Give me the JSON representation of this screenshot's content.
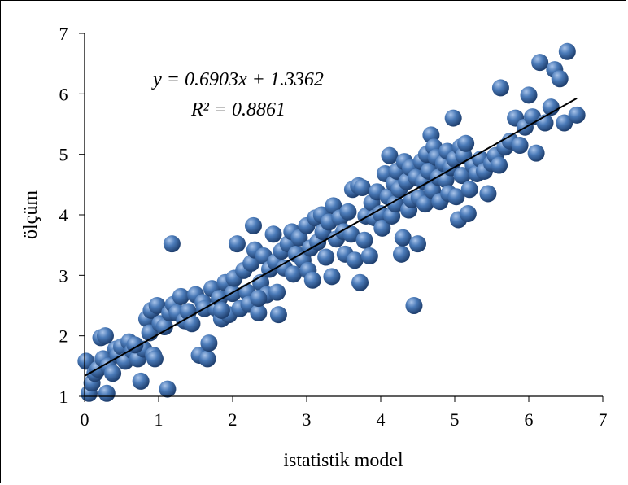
{
  "chart_data": {
    "type": "scatter",
    "xlabel": "istatistik model",
    "ylabel": "ölçüm",
    "xlim": [
      0,
      7
    ],
    "ylim": [
      1,
      7
    ],
    "xticks": [
      "0",
      "1",
      "2",
      "3",
      "4",
      "5",
      "6",
      "7"
    ],
    "yticks": [
      "1",
      "2",
      "3",
      "4",
      "5",
      "6",
      "7"
    ],
    "grid": false,
    "legend": "none",
    "marker_color": "#4a7ab8",
    "trendline": {
      "slope": 0.6903,
      "intercept": 1.3362,
      "x_range": [
        0,
        6.65
      ],
      "color": "#000000"
    },
    "equation": "y = 0.6903x + 1.3362",
    "r_squared": "R² = 0.8861",
    "points": [
      [
        0.02,
        1.58
      ],
      [
        0.06,
        1.05
      ],
      [
        0.1,
        1.22
      ],
      [
        0.14,
        1.38
      ],
      [
        0.18,
        1.45
      ],
      [
        0.22,
        1.97
      ],
      [
        0.25,
        1.62
      ],
      [
        0.28,
        2.0
      ],
      [
        0.3,
        1.05
      ],
      [
        0.32,
        1.5
      ],
      [
        0.38,
        1.38
      ],
      [
        0.42,
        1.78
      ],
      [
        0.45,
        1.68
      ],
      [
        0.5,
        1.82
      ],
      [
        0.55,
        1.58
      ],
      [
        0.6,
        1.9
      ],
      [
        0.65,
        1.75
      ],
      [
        0.72,
        1.62
      ],
      [
        0.76,
        1.25
      ],
      [
        0.8,
        1.78
      ],
      [
        0.84,
        2.28
      ],
      [
        0.88,
        2.05
      ],
      [
        0.9,
        2.42
      ],
      [
        0.93,
        1.68
      ],
      [
        0.95,
        1.62
      ],
      [
        0.98,
        2.5
      ],
      [
        1.02,
        2.2
      ],
      [
        1.08,
        2.15
      ],
      [
        1.12,
        1.12
      ],
      [
        1.15,
        2.38
      ],
      [
        1.18,
        3.52
      ],
      [
        1.2,
        2.52
      ],
      [
        1.25,
        2.38
      ],
      [
        1.3,
        2.65
      ],
      [
        1.35,
        2.25
      ],
      [
        1.4,
        2.4
      ],
      [
        1.45,
        2.2
      ],
      [
        1.5,
        2.68
      ],
      [
        1.55,
        1.68
      ],
      [
        1.6,
        2.55
      ],
      [
        1.62,
        2.45
      ],
      [
        1.66,
        1.62
      ],
      [
        1.68,
        1.88
      ],
      [
        1.72,
        2.78
      ],
      [
        1.78,
        2.45
      ],
      [
        1.82,
        2.62
      ],
      [
        1.85,
        2.28
      ],
      [
        1.9,
        2.88
      ],
      [
        1.95,
        2.35
      ],
      [
        2.0,
        2.7
      ],
      [
        2.02,
        2.95
      ],
      [
        2.06,
        3.52
      ],
      [
        2.1,
        2.45
      ],
      [
        2.15,
        3.08
      ],
      [
        2.2,
        2.72
      ],
      [
        2.22,
        2.52
      ],
      [
        2.25,
        3.2
      ],
      [
        2.28,
        3.82
      ],
      [
        2.3,
        3.42
      ],
      [
        2.35,
        2.38
      ],
      [
        2.38,
        2.88
      ],
      [
        2.42,
        3.32
      ],
      [
        2.46,
        2.68
      ],
      [
        2.5,
        3.1
      ],
      [
        2.55,
        3.68
      ],
      [
        2.58,
        3.22
      ],
      [
        2.6,
        2.72
      ],
      [
        2.62,
        2.35
      ],
      [
        2.66,
        3.4
      ],
      [
        2.7,
        3.12
      ],
      [
        2.75,
        3.52
      ],
      [
        2.8,
        3.72
      ],
      [
        2.82,
        3.02
      ],
      [
        2.86,
        3.35
      ],
      [
        2.9,
        3.62
      ],
      [
        2.95,
        3.25
      ],
      [
        3.0,
        3.82
      ],
      [
        3.02,
        3.08
      ],
      [
        3.05,
        3.45
      ],
      [
        3.08,
        2.92
      ],
      [
        3.12,
        3.95
      ],
      [
        3.15,
        3.55
      ],
      [
        3.2,
        4.0
      ],
      [
        3.22,
        3.72
      ],
      [
        3.26,
        3.3
      ],
      [
        3.3,
        3.88
      ],
      [
        3.34,
        2.98
      ],
      [
        3.36,
        4.15
      ],
      [
        3.4,
        3.6
      ],
      [
        3.45,
        3.95
      ],
      [
        3.5,
        3.72
      ],
      [
        3.52,
        3.35
      ],
      [
        3.56,
        4.05
      ],
      [
        3.6,
        3.68
      ],
      [
        3.62,
        4.42
      ],
      [
        3.65,
        3.25
      ],
      [
        3.7,
        4.48
      ],
      [
        3.72,
        2.88
      ],
      [
        3.75,
        4.45
      ],
      [
        3.78,
        3.58
      ],
      [
        3.8,
        3.98
      ],
      [
        3.85,
        3.32
      ],
      [
        3.88,
        4.2
      ],
      [
        3.92,
        3.95
      ],
      [
        3.95,
        4.38
      ],
      [
        4.0,
        4.02
      ],
      [
        4.02,
        3.78
      ],
      [
        4.06,
        4.68
      ],
      [
        4.1,
        4.3
      ],
      [
        4.12,
        4.98
      ],
      [
        4.15,
        3.98
      ],
      [
        4.18,
        4.52
      ],
      [
        4.2,
        4.18
      ],
      [
        4.22,
        4.72
      ],
      [
        4.25,
        4.42
      ],
      [
        4.28,
        3.35
      ],
      [
        4.3,
        3.62
      ],
      [
        4.32,
        4.88
      ],
      [
        4.35,
        4.55
      ],
      [
        4.38,
        4.08
      ],
      [
        4.4,
        4.78
      ],
      [
        4.42,
        4.25
      ],
      [
        4.45,
        2.5
      ],
      [
        4.48,
        4.62
      ],
      [
        4.5,
        3.52
      ],
      [
        4.52,
        4.28
      ],
      [
        4.55,
        4.88
      ],
      [
        4.58,
        4.55
      ],
      [
        4.6,
        4.18
      ],
      [
        4.62,
        5.0
      ],
      [
        4.65,
        4.72
      ],
      [
        4.68,
        5.32
      ],
      [
        4.7,
        4.4
      ],
      [
        4.72,
        5.12
      ],
      [
        4.75,
        4.95
      ],
      [
        4.78,
        4.62
      ],
      [
        4.8,
        4.22
      ],
      [
        4.85,
        4.85
      ],
      [
        4.88,
        4.58
      ],
      [
        4.9,
        5.05
      ],
      [
        4.92,
        4.35
      ],
      [
        4.95,
        4.78
      ],
      [
        4.98,
        5.6
      ],
      [
        5.0,
        4.92
      ],
      [
        5.02,
        4.3
      ],
      [
        5.05,
        3.92
      ],
      [
        5.08,
        5.12
      ],
      [
        5.1,
        4.65
      ],
      [
        5.12,
        4.98
      ],
      [
        5.15,
        5.18
      ],
      [
        5.18,
        4.02
      ],
      [
        5.2,
        4.42
      ],
      [
        5.25,
        4.82
      ],
      [
        5.3,
        4.68
      ],
      [
        5.35,
        4.92
      ],
      [
        5.4,
        4.72
      ],
      [
        5.45,
        4.35
      ],
      [
        5.5,
        4.85
      ],
      [
        5.55,
        4.98
      ],
      [
        5.6,
        4.82
      ],
      [
        5.62,
        6.1
      ],
      [
        5.68,
        5.12
      ],
      [
        5.75,
        5.22
      ],
      [
        5.82,
        5.6
      ],
      [
        5.88,
        5.15
      ],
      [
        5.95,
        5.45
      ],
      [
        6.0,
        5.98
      ],
      [
        6.05,
        5.62
      ],
      [
        6.1,
        5.02
      ],
      [
        6.15,
        6.52
      ],
      [
        6.22,
        5.52
      ],
      [
        6.3,
        5.78
      ],
      [
        6.35,
        6.4
      ],
      [
        6.42,
        6.25
      ],
      [
        6.48,
        5.52
      ],
      [
        6.52,
        6.7
      ],
      [
        6.65,
        5.65
      ],
      [
        1.85,
        2.42
      ],
      [
        2.35,
        2.62
      ],
      [
        0.68,
        1.85
      ]
    ]
  }
}
